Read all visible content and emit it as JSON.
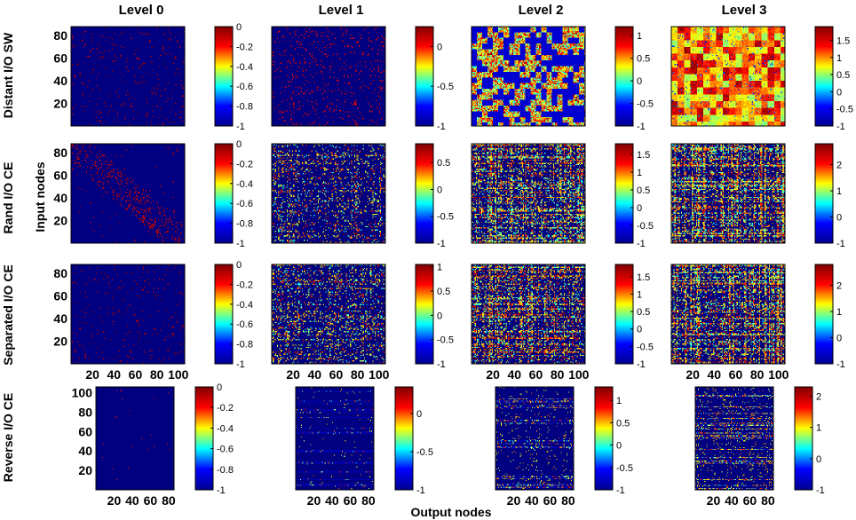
{
  "chart_data": {
    "type": "heatmap",
    "title": "",
    "xlabel": "Output nodes",
    "ylabel": "Input nodes",
    "colormap": "jet",
    "colormap_stops": [
      "#00008f",
      "#0000ff",
      "#00ffff",
      "#ffff00",
      "#ff0000",
      "#800000"
    ],
    "column_titles": [
      "Level 0",
      "Level 1",
      "Level 2",
      "Level 3"
    ],
    "row_labels": [
      "Distant I/O SW",
      "Rand I/O CE",
      "Separated I/O CE",
      "Reverse I/O CE"
    ],
    "x_ticks_normal": [
      "20",
      "40",
      "60",
      "80",
      "100"
    ],
    "x_ticks_reverse": [
      "20",
      "40",
      "60",
      "80"
    ],
    "y_ticks_normal": [
      "20",
      "40",
      "60",
      "80"
    ],
    "y_ticks_reverse": [
      "20",
      "40",
      "60",
      "80",
      "100"
    ],
    "panels": [
      {
        "row": 0,
        "col": 0,
        "pattern": "sparse",
        "density": 0.035,
        "range": [
          -1,
          0
        ],
        "cbar_ticks": [
          "0",
          "-0.2",
          "-0.4",
          "-0.6",
          "-0.8",
          "-1"
        ]
      },
      {
        "row": 0,
        "col": 1,
        "pattern": "clustered",
        "density": 0.13,
        "range": [
          -1,
          0.25
        ],
        "cbar_ticks": [
          "0",
          "-0.5",
          "-1"
        ]
      },
      {
        "row": 0,
        "col": 2,
        "pattern": "patchy",
        "density": 0.55,
        "range": [
          -1,
          1.2
        ],
        "cbar_ticks": [
          "1",
          "0.5",
          "0",
          "-0.5",
          "-1"
        ]
      },
      {
        "row": 0,
        "col": 3,
        "pattern": "dense",
        "density": 0.95,
        "range": [
          -1,
          1.9
        ],
        "cbar_ticks": [
          "1.5",
          "1",
          "0.5",
          "0",
          "-0.5",
          "-1"
        ]
      },
      {
        "row": 1,
        "col": 0,
        "pattern": "diagonal",
        "density": 0.05,
        "range": [
          -1,
          0
        ],
        "cbar_ticks": [
          "0",
          "-0.2",
          "-0.4",
          "-0.6",
          "-0.8",
          "-1"
        ]
      },
      {
        "row": 1,
        "col": 1,
        "pattern": "stripes",
        "density": 0.3,
        "range": [
          -1,
          0.85
        ],
        "cbar_ticks": [
          "0.5",
          "0",
          "-0.5",
          "-1"
        ]
      },
      {
        "row": 1,
        "col": 2,
        "pattern": "stripes",
        "density": 0.6,
        "range": [
          -1,
          1.8
        ],
        "cbar_ticks": [
          "1.5",
          "1",
          "0.5",
          "0",
          "-0.5",
          "-1"
        ]
      },
      {
        "row": 1,
        "col": 3,
        "pattern": "stripes",
        "density": 0.8,
        "range": [
          -1,
          2.8
        ],
        "cbar_ticks": [
          "2",
          "1",
          "0",
          "-1"
        ]
      },
      {
        "row": 2,
        "col": 0,
        "pattern": "sparse",
        "density": 0.03,
        "range": [
          -1,
          0
        ],
        "cbar_ticks": [
          "0",
          "-0.2",
          "-0.4",
          "-0.6",
          "-0.8",
          "-1"
        ]
      },
      {
        "row": 2,
        "col": 1,
        "pattern": "stripes",
        "density": 0.3,
        "range": [
          -1,
          1.05
        ],
        "cbar_ticks": [
          "1",
          "0.5",
          "0",
          "-0.5",
          "-1"
        ]
      },
      {
        "row": 2,
        "col": 2,
        "pattern": "stripes",
        "density": 0.6,
        "range": [
          -1,
          1.85
        ],
        "cbar_ticks": [
          "1.5",
          "1",
          "0.5",
          "0",
          "-0.5",
          "-1"
        ]
      },
      {
        "row": 2,
        "col": 3,
        "pattern": "stripes",
        "density": 0.8,
        "range": [
          -1,
          2.8
        ],
        "cbar_ticks": [
          "2",
          "1",
          "0",
          "-1"
        ]
      },
      {
        "row": 3,
        "col": 0,
        "pattern": "empty",
        "density": 0.003,
        "range": [
          -1,
          0
        ],
        "cbar_ticks": [
          "0",
          "-0.2",
          "-0.4",
          "-0.6",
          "-0.8",
          "-1"
        ]
      },
      {
        "row": 3,
        "col": 1,
        "pattern": "bands",
        "density": 0.08,
        "range": [
          -1,
          0.35
        ],
        "cbar_ticks": [
          "0",
          "-0.5",
          "-1"
        ]
      },
      {
        "row": 3,
        "col": 2,
        "pattern": "bands",
        "density": 0.3,
        "range": [
          -1,
          1.3
        ],
        "cbar_ticks": [
          "1",
          "0.5",
          "0",
          "-0.5",
          "-1"
        ]
      },
      {
        "row": 3,
        "col": 3,
        "pattern": "bands",
        "density": 0.5,
        "range": [
          -1,
          2.3
        ],
        "cbar_ticks": [
          "2",
          "1",
          "0",
          "-1"
        ]
      }
    ]
  }
}
